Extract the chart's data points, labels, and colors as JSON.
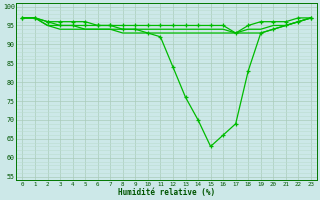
{
  "xlabel": "Humidité relative (%)",
  "x": [
    0,
    1,
    2,
    3,
    4,
    5,
    6,
    7,
    8,
    9,
    10,
    11,
    12,
    13,
    14,
    15,
    16,
    17,
    18,
    19,
    20,
    21,
    22,
    23
  ],
  "line_top": [
    97,
    97,
    96,
    96,
    96,
    96,
    95,
    95,
    95,
    95,
    95,
    95,
    95,
    95,
    95,
    95,
    95,
    93,
    95,
    96,
    96,
    96,
    97,
    97
  ],
  "line_mid1": [
    97,
    97,
    95,
    95,
    95,
    94,
    94,
    94,
    94,
    94,
    94,
    94,
    94,
    94,
    94,
    94,
    94,
    93,
    94,
    94,
    95,
    95,
    96,
    97
  ],
  "line_mid2": [
    97,
    97,
    95,
    94,
    94,
    94,
    94,
    94,
    93,
    93,
    93,
    93,
    93,
    93,
    93,
    93,
    93,
    93,
    93,
    93,
    94,
    95,
    96,
    97
  ],
  "line_main": [
    97,
    97,
    96,
    95,
    95,
    95,
    95,
    95,
    94,
    94,
    93,
    92,
    84,
    76,
    70,
    63,
    66,
    69,
    83,
    93,
    94,
    95,
    96,
    97
  ],
  "bg_color": "#cce8e8",
  "grid_major_color": "#aaccbb",
  "grid_minor_color": "#bbddd0",
  "line_color": "#00bb00",
  "ylim": [
    54,
    101
  ],
  "yticks": [
    55,
    60,
    65,
    70,
    75,
    80,
    85,
    90,
    95,
    100
  ],
  "xticks": [
    0,
    1,
    2,
    3,
    4,
    5,
    6,
    7,
    8,
    9,
    10,
    11,
    12,
    13,
    14,
    15,
    16,
    17,
    18,
    19,
    20,
    21,
    22,
    23
  ]
}
